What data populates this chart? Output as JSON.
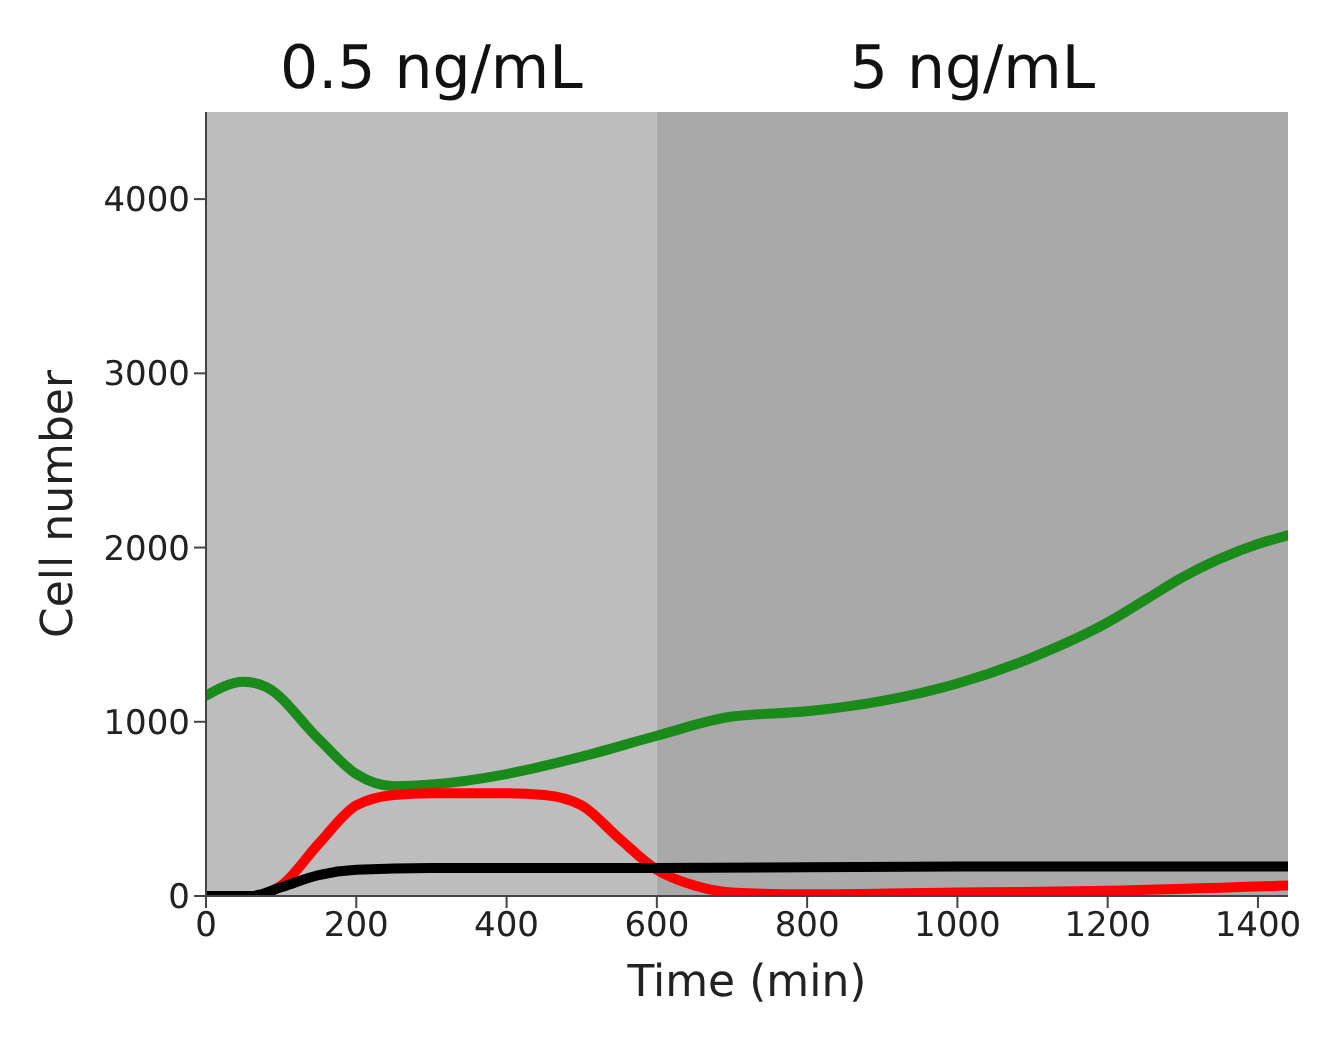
{
  "chart_data": {
    "type": "line",
    "xlabel": "Time (min)",
    "ylabel": "Cell number",
    "xlim": [
      0,
      1440
    ],
    "xticks": [
      0,
      200,
      400,
      600,
      800,
      1000,
      1200,
      1400
    ],
    "ylim": [
      0,
      4500
    ],
    "yticks": [
      0,
      1000,
      2000,
      3000,
      4000
    ],
    "grid": false,
    "legend": false,
    "marker": "none",
    "line_style": "solid",
    "bands": [
      {
        "axis": "x",
        "from": 0,
        "to": 600,
        "label": "0.5 ng/mL",
        "color": "#bdbdbd"
      },
      {
        "axis": "x",
        "from": 600,
        "to": 1440,
        "label": "5 ng/mL",
        "color": "#a9a9a9"
      }
    ],
    "series": [
      {
        "color": "#1a8a1a",
        "x": [
          0,
          50,
          80,
          150,
          200,
          250,
          300,
          400,
          500,
          600,
          700,
          800,
          900,
          1000,
          1100,
          1200,
          1250,
          1300,
          1400,
          1440
        ],
        "values": [
          1150,
          1230,
          1200,
          900,
          700,
          630,
          640,
          700,
          800,
          920,
          1030,
          1060,
          1120,
          1220,
          1370,
          1570,
          1700,
          1830,
          2020,
          2070
        ]
      },
      {
        "color": "#ff0000",
        "x": [
          0,
          60,
          100,
          150,
          200,
          250,
          300,
          400,
          450,
          500,
          550,
          600,
          650,
          700,
          800,
          1000,
          1200,
          1440
        ],
        "values": [
          0,
          0,
          60,
          300,
          520,
          580,
          590,
          590,
          580,
          520,
          330,
          150,
          60,
          20,
          10,
          20,
          30,
          60
        ]
      },
      {
        "color": "#000000",
        "x": [
          0,
          60,
          100,
          150,
          200,
          300,
          600,
          1000,
          1440
        ],
        "values": [
          0,
          0,
          50,
          120,
          150,
          160,
          160,
          170,
          170
        ]
      }
    ]
  }
}
